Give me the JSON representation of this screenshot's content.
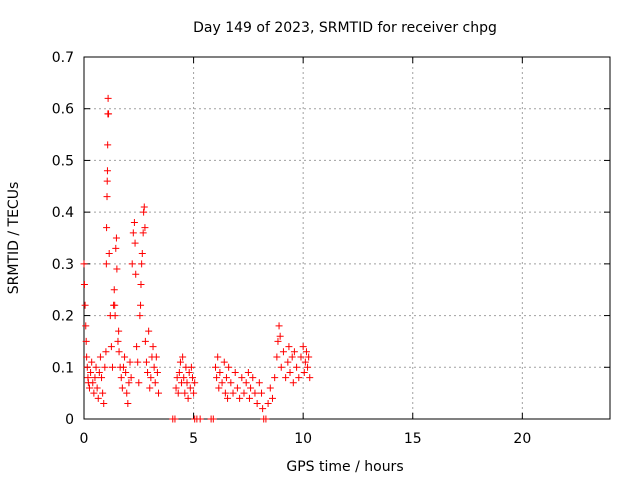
{
  "colors": {
    "series": "#ff0000",
    "grid": "#a0a0a0",
    "axes": "#000000"
  },
  "chart_data": {
    "type": "scatter",
    "title": "Day 149 of 2023, SRMTID for receiver chpg",
    "xlabel": "GPS time / hours",
    "ylabel": "SRMTID / TECUs",
    "xlim": [
      0,
      24
    ],
    "ylim": [
      0,
      0.7
    ],
    "x_ticks": [
      0,
      5,
      10,
      15,
      20
    ],
    "x_tick_labels": [
      "0",
      "5",
      "10",
      "15",
      "20"
    ],
    "y_ticks": [
      0,
      0.1,
      0.2,
      0.3,
      0.4,
      0.5,
      0.6,
      0.7
    ],
    "y_tick_labels": [
      "0",
      "0.1",
      "0.2",
      "0.3",
      "0.4",
      "0.5",
      "0.6",
      "0.7"
    ],
    "grid": true,
    "marker": "+",
    "series": [
      {
        "name": "SRMTID",
        "color": "#ff0000",
        "points": [
          [
            0.0,
            0.3
          ],
          [
            0.02,
            0.26
          ],
          [
            0.05,
            0.22
          ],
          [
            0.08,
            0.18
          ],
          [
            0.1,
            0.15
          ],
          [
            0.12,
            0.12
          ],
          [
            0.15,
            0.1
          ],
          [
            0.18,
            0.08
          ],
          [
            0.2,
            0.07
          ],
          [
            0.25,
            0.06
          ],
          [
            0.3,
            0.09
          ],
          [
            0.35,
            0.11
          ],
          [
            0.4,
            0.07
          ],
          [
            0.45,
            0.05
          ],
          [
            0.5,
            0.08
          ],
          [
            0.55,
            0.1
          ],
          [
            0.6,
            0.06
          ],
          [
            0.65,
            0.04
          ],
          [
            0.7,
            0.09
          ],
          [
            0.75,
            0.12
          ],
          [
            0.8,
            0.08
          ],
          [
            0.85,
            0.05
          ],
          [
            0.9,
            0.03
          ],
          [
            0.95,
            0.1
          ],
          [
            1.0,
            0.13
          ],
          [
            1.02,
            0.3
          ],
          [
            1.03,
            0.37
          ],
          [
            1.05,
            0.43
          ],
          [
            1.06,
            0.46
          ],
          [
            1.07,
            0.48
          ],
          [
            1.08,
            0.53
          ],
          [
            1.09,
            0.59
          ],
          [
            1.1,
            0.62
          ],
          [
            1.12,
            0.59
          ],
          [
            1.15,
            0.32
          ],
          [
            1.2,
            0.2
          ],
          [
            1.25,
            0.14
          ],
          [
            1.3,
            0.1
          ],
          [
            1.35,
            0.22
          ],
          [
            1.38,
            0.25
          ],
          [
            1.4,
            0.22
          ],
          [
            1.42,
            0.2
          ],
          [
            1.45,
            0.33
          ],
          [
            1.48,
            0.35
          ],
          [
            1.5,
            0.29
          ],
          [
            1.55,
            0.15
          ],
          [
            1.58,
            0.17
          ],
          [
            1.6,
            0.13
          ],
          [
            1.65,
            0.1
          ],
          [
            1.7,
            0.08
          ],
          [
            1.75,
            0.06
          ],
          [
            1.8,
            0.1
          ],
          [
            1.85,
            0.12
          ],
          [
            1.9,
            0.09
          ],
          [
            1.95,
            0.05
          ],
          [
            2.0,
            0.03
          ],
          [
            2.05,
            0.07
          ],
          [
            2.1,
            0.11
          ],
          [
            2.15,
            0.08
          ],
          [
            2.2,
            0.3
          ],
          [
            2.25,
            0.36
          ],
          [
            2.3,
            0.38
          ],
          [
            2.33,
            0.34
          ],
          [
            2.36,
            0.28
          ],
          [
            2.4,
            0.14
          ],
          [
            2.45,
            0.11
          ],
          [
            2.5,
            0.07
          ],
          [
            2.55,
            0.2
          ],
          [
            2.58,
            0.22
          ],
          [
            2.6,
            0.26
          ],
          [
            2.63,
            0.3
          ],
          [
            2.66,
            0.32
          ],
          [
            2.7,
            0.36
          ],
          [
            2.72,
            0.4
          ],
          [
            2.75,
            0.41
          ],
          [
            2.78,
            0.37
          ],
          [
            2.8,
            0.15
          ],
          [
            2.85,
            0.11
          ],
          [
            2.9,
            0.09
          ],
          [
            2.95,
            0.17
          ],
          [
            3.0,
            0.06
          ],
          [
            3.05,
            0.08
          ],
          [
            3.1,
            0.12
          ],
          [
            3.15,
            0.14
          ],
          [
            3.2,
            0.1
          ],
          [
            3.25,
            0.07
          ],
          [
            3.3,
            0.12
          ],
          [
            3.35,
            0.09
          ],
          [
            3.4,
            0.05
          ],
          [
            4.05,
            0.0
          ],
          [
            4.15,
            0.0
          ],
          [
            4.2,
            0.06
          ],
          [
            4.25,
            0.08
          ],
          [
            4.3,
            0.05
          ],
          [
            4.35,
            0.09
          ],
          [
            4.4,
            0.11
          ],
          [
            4.45,
            0.07
          ],
          [
            4.5,
            0.12
          ],
          [
            4.55,
            0.08
          ],
          [
            4.6,
            0.05
          ],
          [
            4.65,
            0.1
          ],
          [
            4.7,
            0.07
          ],
          [
            4.75,
            0.04
          ],
          [
            4.8,
            0.09
          ],
          [
            4.85,
            0.06
          ],
          [
            4.9,
            0.1
          ],
          [
            4.95,
            0.08
          ],
          [
            5.0,
            0.05
          ],
          [
            5.05,
            0.07
          ],
          [
            5.05,
            0.0
          ],
          [
            5.15,
            0.0
          ],
          [
            5.3,
            0.0
          ],
          [
            5.8,
            0.0
          ],
          [
            5.9,
            0.0
          ],
          [
            6.0,
            0.1
          ],
          [
            6.05,
            0.08
          ],
          [
            6.1,
            0.12
          ],
          [
            6.15,
            0.06
          ],
          [
            6.2,
            0.09
          ],
          [
            6.3,
            0.07
          ],
          [
            6.4,
            0.11
          ],
          [
            6.45,
            0.05
          ],
          [
            6.5,
            0.08
          ],
          [
            6.55,
            0.04
          ],
          [
            6.6,
            0.1
          ],
          [
            6.7,
            0.07
          ],
          [
            6.8,
            0.05
          ],
          [
            6.9,
            0.09
          ],
          [
            7.0,
            0.06
          ],
          [
            7.1,
            0.04
          ],
          [
            7.2,
            0.08
          ],
          [
            7.3,
            0.05
          ],
          [
            7.4,
            0.07
          ],
          [
            7.5,
            0.09
          ],
          [
            7.55,
            0.04
          ],
          [
            7.6,
            0.06
          ],
          [
            7.7,
            0.08
          ],
          [
            7.8,
            0.05
          ],
          [
            7.9,
            0.03
          ],
          [
            8.0,
            0.07
          ],
          [
            8.1,
            0.05
          ],
          [
            8.15,
            0.02
          ],
          [
            8.2,
            0.0
          ],
          [
            8.3,
            0.0
          ],
          [
            8.4,
            0.03
          ],
          [
            8.5,
            0.06
          ],
          [
            8.6,
            0.04
          ],
          [
            8.7,
            0.08
          ],
          [
            8.8,
            0.12
          ],
          [
            8.85,
            0.15
          ],
          [
            8.9,
            0.18
          ],
          [
            8.95,
            0.16
          ],
          [
            9.0,
            0.1
          ],
          [
            9.1,
            0.13
          ],
          [
            9.2,
            0.08
          ],
          [
            9.3,
            0.11
          ],
          [
            9.35,
            0.14
          ],
          [
            9.4,
            0.09
          ],
          [
            9.5,
            0.12
          ],
          [
            9.55,
            0.07
          ],
          [
            9.6,
            0.13
          ],
          [
            9.7,
            0.1
          ],
          [
            9.8,
            0.08
          ],
          [
            9.9,
            0.12
          ],
          [
            10.0,
            0.14
          ],
          [
            10.05,
            0.09
          ],
          [
            10.1,
            0.11
          ],
          [
            10.15,
            0.13
          ],
          [
            10.2,
            0.1
          ],
          [
            10.25,
            0.12
          ],
          [
            10.3,
            0.08
          ]
        ]
      }
    ]
  }
}
